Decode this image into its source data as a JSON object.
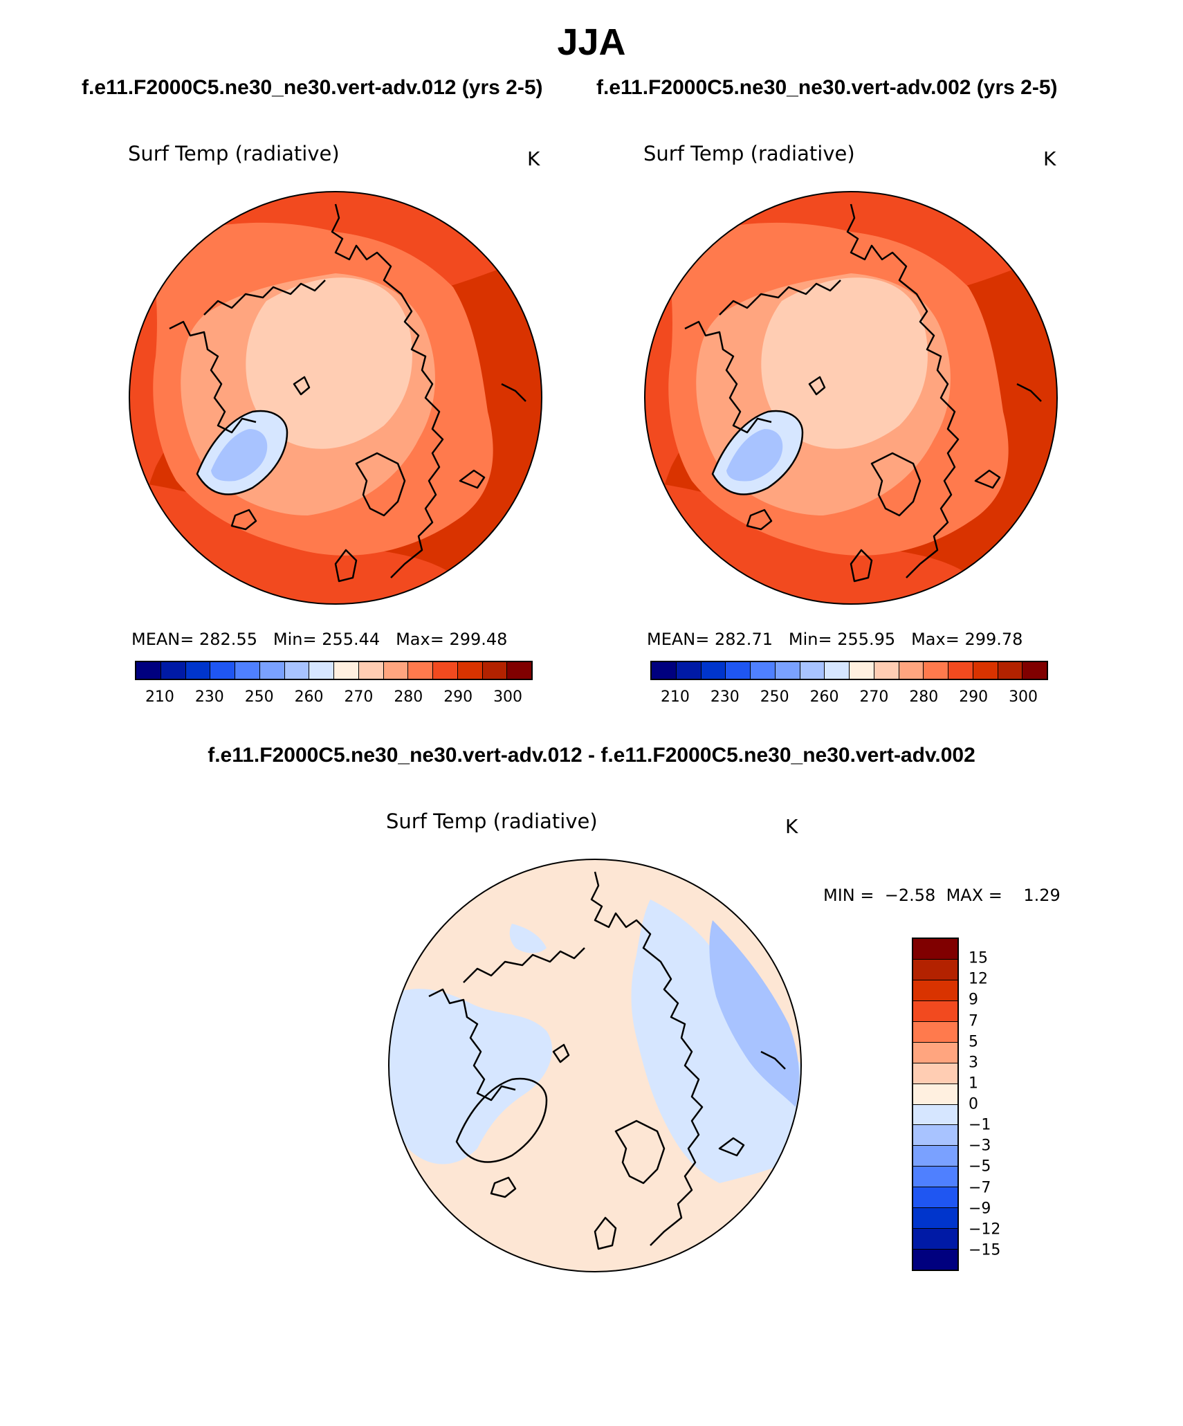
{
  "figure": {
    "title": "JJA",
    "left_run": "f.e11.F2000C5.ne30_ne30.vert-adv.012 (yrs 2-5)",
    "right_run": "f.e11.F2000C5.ne30_ne30.vert-adv.002 (yrs 2-5)",
    "diff_title": "f.e11.F2000C5.ne30_ne30.vert-adv.012 - f.e11.F2000C5.ne30_ne30.vert-adv.002"
  },
  "variable": {
    "label": "Surf Temp (radiative)",
    "units": "K"
  },
  "panels": [
    {
      "mean_label": "MEAN=",
      "mean": "282.55",
      "min_label": "Min=",
      "min": "255.44",
      "max_label": "Max=",
      "max": "299.48"
    },
    {
      "mean_label": "MEAN=",
      "mean": "282.71",
      "min_label": "Min=",
      "min": "255.95",
      "max_label": "Max=",
      "max": "299.78"
    }
  ],
  "abs_colorbar": {
    "colors": [
      "#00007f",
      "#001aa6",
      "#0035cc",
      "#1f56f2",
      "#4f80ff",
      "#7aa1ff",
      "#a8c3ff",
      "#d6e6ff",
      "#fff0e0",
      "#ffcdb3",
      "#ffa57f",
      "#ff7a4d",
      "#f24a1f",
      "#d93300",
      "#b32200",
      "#800000"
    ],
    "ticks": [
      "210",
      "230",
      "250",
      "260",
      "270",
      "280",
      "290",
      "300"
    ]
  },
  "diff_panel": {
    "min_label": "MIN =",
    "min": "−2.58",
    "max_label": "MAX =",
    "max": "1.29"
  },
  "diff_colorbar": {
    "colors": [
      "#800000",
      "#b32200",
      "#d93300",
      "#f24a1f",
      "#ff7a4d",
      "#ffa57f",
      "#ffcdb3",
      "#fff0e0",
      "#d6e6ff",
      "#a8c3ff",
      "#7aa1ff",
      "#4f80ff",
      "#1f56f2",
      "#0035cc",
      "#001aa6",
      "#00007f"
    ],
    "ticks": [
      "15",
      "12",
      "9",
      "7",
      "5",
      "3",
      "1",
      "0",
      "−1",
      "−3",
      "−5",
      "−7",
      "−9",
      "−12",
      "−15"
    ]
  },
  "map_colors": {
    "warm1": "#d93300",
    "warm2": "#f24a1f",
    "warm3": "#ff7a4d",
    "warm4": "#ffa57f",
    "warm5": "#ffcdb3",
    "cold1": "#d6e6ff",
    "cold2": "#a8c3ff",
    "diff_pos": "#fde6d4",
    "diff_neg1": "#d6e6ff",
    "diff_neg2": "#a8c3ff"
  }
}
